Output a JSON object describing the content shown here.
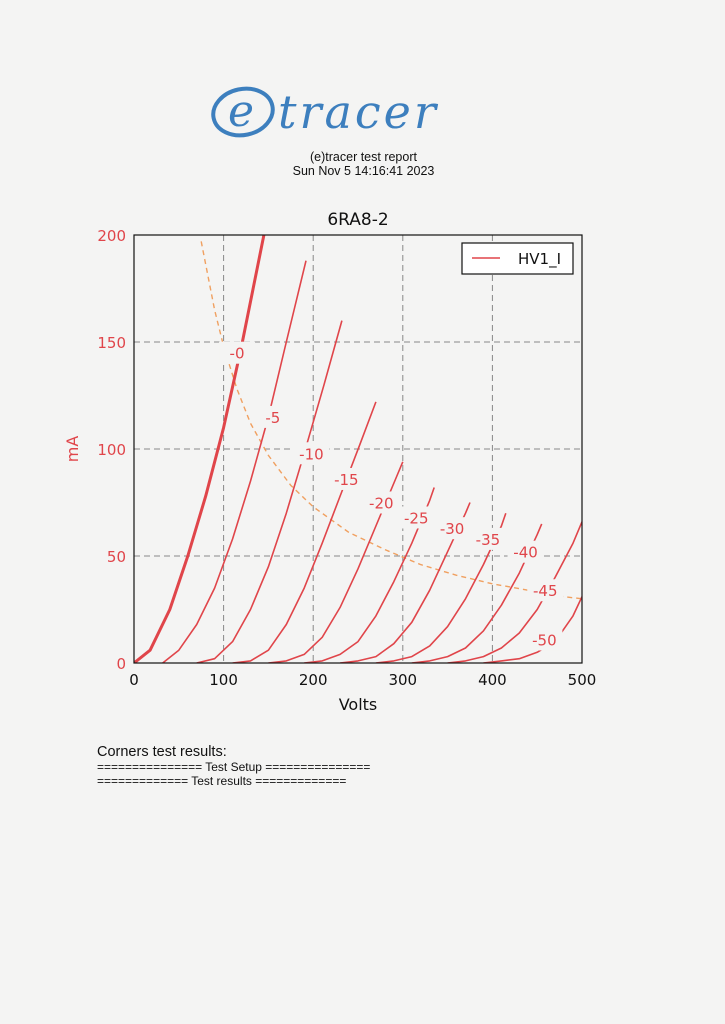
{
  "header": {
    "logo_text": "(e)tracer",
    "report_title": "(e)tracer test report",
    "report_date": "Sun Nov 5 14:16:41 2023"
  },
  "chart_data": {
    "type": "line",
    "title": "6RA8-2",
    "xlabel": "Volts",
    "ylabel": "mA",
    "xlim": [
      0,
      500
    ],
    "ylim": [
      0,
      200
    ],
    "xticks": [
      0,
      100,
      200,
      300,
      400,
      500
    ],
    "yticks": [
      0,
      50,
      100,
      150,
      200
    ],
    "grid": true,
    "legend": {
      "position": "top-right",
      "entries": [
        "HV1_I"
      ]
    },
    "colors": {
      "curve": "#e0454a",
      "load_line": "#f0a060",
      "axis_text": "#e0454a"
    },
    "series": [
      {
        "name": "HV1_I",
        "label": "-0",
        "points": [
          [
            0,
            0
          ],
          [
            18,
            6
          ],
          [
            40,
            25
          ],
          [
            60,
            50
          ],
          [
            80,
            78
          ],
          [
            100,
            110
          ],
          [
            120,
            148
          ],
          [
            145,
            200
          ]
        ]
      },
      {
        "label": "-5",
        "points": [
          [
            32,
            0
          ],
          [
            50,
            6
          ],
          [
            70,
            18
          ],
          [
            90,
            35
          ],
          [
            110,
            58
          ],
          [
            130,
            85
          ],
          [
            150,
            115
          ],
          [
            170,
            150
          ],
          [
            192,
            188
          ]
        ]
      },
      {
        "label": "-10",
        "points": [
          [
            70,
            0
          ],
          [
            90,
            2
          ],
          [
            110,
            10
          ],
          [
            130,
            25
          ],
          [
            150,
            45
          ],
          [
            170,
            70
          ],
          [
            190,
            98
          ],
          [
            212,
            130
          ],
          [
            232,
            160
          ]
        ]
      },
      {
        "label": "-15",
        "points": [
          [
            110,
            0
          ],
          [
            130,
            1
          ],
          [
            150,
            6
          ],
          [
            170,
            18
          ],
          [
            190,
            35
          ],
          [
            210,
            56
          ],
          [
            230,
            78
          ],
          [
            252,
            102
          ],
          [
            270,
            122
          ]
        ]
      },
      {
        "label": "-20",
        "points": [
          [
            150,
            0
          ],
          [
            170,
            1
          ],
          [
            190,
            4
          ],
          [
            210,
            12
          ],
          [
            230,
            26
          ],
          [
            250,
            44
          ],
          [
            270,
            64
          ],
          [
            292,
            86
          ],
          [
            300,
            94
          ]
        ]
      },
      {
        "label": "-25",
        "points": [
          [
            190,
            0
          ],
          [
            210,
            1
          ],
          [
            230,
            4
          ],
          [
            250,
            10
          ],
          [
            270,
            22
          ],
          [
            290,
            38
          ],
          [
            310,
            56
          ],
          [
            330,
            76
          ],
          [
            335,
            82
          ]
        ]
      },
      {
        "label": "-30",
        "points": [
          [
            230,
            0
          ],
          [
            250,
            1
          ],
          [
            270,
            3
          ],
          [
            290,
            9
          ],
          [
            310,
            19
          ],
          [
            330,
            34
          ],
          [
            350,
            52
          ],
          [
            370,
            70
          ],
          [
            375,
            75
          ]
        ]
      },
      {
        "label": "-35",
        "points": [
          [
            270,
            0
          ],
          [
            290,
            1
          ],
          [
            310,
            3
          ],
          [
            330,
            8
          ],
          [
            350,
            17
          ],
          [
            370,
            30
          ],
          [
            390,
            46
          ],
          [
            410,
            64
          ],
          [
            415,
            70
          ]
        ]
      },
      {
        "label": "-40",
        "points": [
          [
            310,
            0
          ],
          [
            330,
            1
          ],
          [
            350,
            3
          ],
          [
            370,
            7
          ],
          [
            390,
            15
          ],
          [
            410,
            27
          ],
          [
            430,
            42
          ],
          [
            450,
            60
          ],
          [
            455,
            65
          ]
        ]
      },
      {
        "label": "-45",
        "points": [
          [
            350,
            0
          ],
          [
            370,
            1
          ],
          [
            390,
            3
          ],
          [
            410,
            7
          ],
          [
            430,
            14
          ],
          [
            450,
            25
          ],
          [
            470,
            40
          ],
          [
            490,
            56
          ],
          [
            500,
            66
          ]
        ]
      },
      {
        "label": "-50",
        "points": [
          [
            390,
            0
          ],
          [
            410,
            1
          ],
          [
            430,
            2
          ],
          [
            450,
            5
          ],
          [
            470,
            10
          ],
          [
            490,
            22
          ],
          [
            500,
            31
          ]
        ]
      }
    ],
    "curve_label_positions": [
      [
        115,
        145
      ],
      [
        155,
        115
      ],
      [
        198,
        98
      ],
      [
        237,
        86
      ],
      [
        276,
        75
      ],
      [
        315,
        68
      ],
      [
        355,
        63
      ],
      [
        395,
        58
      ],
      [
        437,
        52
      ],
      [
        459,
        34
      ],
      [
        458,
        11
      ]
    ],
    "load_line": {
      "style": "dashed",
      "points": [
        [
          75,
          197
        ],
        [
          90,
          165
        ],
        [
          100,
          148
        ],
        [
          115,
          128
        ],
        [
          130,
          112
        ],
        [
          150,
          97
        ],
        [
          175,
          83
        ],
        [
          200,
          73
        ],
        [
          240,
          61
        ],
        [
          280,
          53
        ],
        [
          320,
          46
        ],
        [
          360,
          41
        ],
        [
          400,
          37
        ],
        [
          440,
          34
        ],
        [
          480,
          31
        ],
        [
          500,
          30
        ]
      ]
    }
  },
  "results": {
    "title": "Corners test results:",
    "line1": "=============== Test Setup ===============",
    "line2": "============= Test results ============="
  }
}
